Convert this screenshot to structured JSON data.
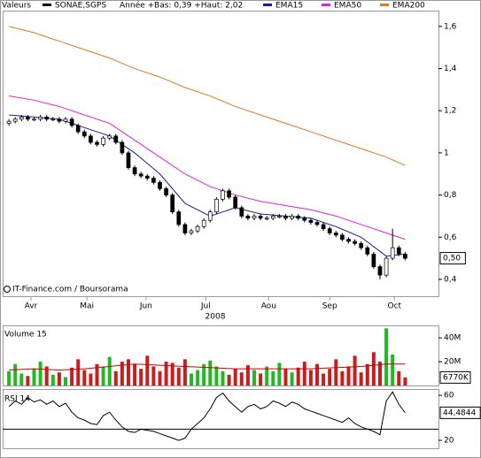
{
  "chart_data": [
    {
      "type": "candlestick",
      "legend_label": "Valeurs",
      "name": "SONAE,SGPS",
      "color": "#000000",
      "range_note": "Année +Bas: 0,39 +Haut: 2,02",
      "up_color": "#ffffff",
      "down_color": "#000000",
      "open": [
        1.14,
        1.15,
        1.16,
        1.17,
        1.16,
        1.16,
        1.17,
        1.16,
        1.16,
        1.15,
        1.16,
        1.13,
        1.1,
        1.08,
        1.05,
        1.04,
        1.07,
        1.08,
        1.05,
        1.0,
        0.93,
        0.9,
        0.89,
        0.88,
        0.86,
        0.83,
        0.8,
        0.72,
        0.66,
        0.62,
        0.63,
        0.65,
        0.68,
        0.72,
        0.78,
        0.82,
        0.79,
        0.74,
        0.7,
        0.69,
        0.7,
        0.69,
        0.69,
        0.7,
        0.7,
        0.69,
        0.7,
        0.69,
        0.68,
        0.67,
        0.66,
        0.64,
        0.62,
        0.61,
        0.59,
        0.58,
        0.57,
        0.55,
        0.52,
        0.46,
        0.42,
        0.5,
        0.55,
        0.52
      ],
      "high": [
        1.16,
        1.17,
        1.18,
        1.18,
        1.17,
        1.18,
        1.18,
        1.17,
        1.17,
        1.17,
        1.17,
        1.14,
        1.11,
        1.09,
        1.06,
        1.08,
        1.09,
        1.09,
        1.06,
        1.01,
        0.94,
        0.91,
        0.9,
        0.89,
        0.87,
        0.84,
        0.81,
        0.73,
        0.67,
        0.64,
        0.66,
        0.69,
        0.73,
        0.79,
        0.83,
        0.83,
        0.8,
        0.75,
        0.71,
        0.71,
        0.71,
        0.7,
        0.71,
        0.71,
        0.71,
        0.71,
        0.71,
        0.7,
        0.69,
        0.68,
        0.67,
        0.65,
        0.63,
        0.62,
        0.6,
        0.59,
        0.58,
        0.56,
        0.53,
        0.47,
        0.51,
        0.64,
        0.56,
        0.53
      ],
      "low": [
        1.13,
        1.14,
        1.15,
        1.15,
        1.15,
        1.15,
        1.15,
        1.15,
        1.14,
        1.14,
        1.12,
        1.09,
        1.07,
        1.04,
        1.03,
        1.03,
        1.06,
        1.04,
        0.99,
        0.92,
        0.89,
        0.88,
        0.87,
        0.85,
        0.82,
        0.79,
        0.71,
        0.65,
        0.61,
        0.61,
        0.62,
        0.64,
        0.67,
        0.71,
        0.77,
        0.78,
        0.73,
        0.69,
        0.68,
        0.68,
        0.68,
        0.68,
        0.68,
        0.69,
        0.68,
        0.68,
        0.68,
        0.67,
        0.66,
        0.65,
        0.63,
        0.61,
        0.6,
        0.58,
        0.57,
        0.56,
        0.54,
        0.51,
        0.45,
        0.4,
        0.41,
        0.49,
        0.51,
        0.49
      ],
      "close": [
        1.15,
        1.16,
        1.17,
        1.16,
        1.16,
        1.17,
        1.16,
        1.16,
        1.15,
        1.16,
        1.13,
        1.1,
        1.08,
        1.05,
        1.04,
        1.07,
        1.08,
        1.05,
        1.0,
        0.93,
        0.9,
        0.89,
        0.88,
        0.86,
        0.83,
        0.8,
        0.72,
        0.66,
        0.62,
        0.63,
        0.65,
        0.68,
        0.72,
        0.78,
        0.82,
        0.79,
        0.74,
        0.7,
        0.69,
        0.7,
        0.69,
        0.69,
        0.7,
        0.7,
        0.69,
        0.7,
        0.69,
        0.68,
        0.67,
        0.66,
        0.64,
        0.62,
        0.61,
        0.59,
        0.58,
        0.57,
        0.55,
        0.52,
        0.46,
        0.42,
        0.5,
        0.55,
        0.52,
        0.5
      ],
      "overlays": [
        {
          "name": "EMA15",
          "color": "#1a1aa0",
          "x": [
            0,
            4,
            8,
            12,
            16,
            20,
            24,
            28,
            32,
            36,
            40,
            44,
            48,
            52,
            56,
            60,
            63
          ],
          "values": [
            1.18,
            1.17,
            1.16,
            1.12,
            1.08,
            1.0,
            0.9,
            0.76,
            0.7,
            0.74,
            0.71,
            0.7,
            0.69,
            0.65,
            0.6,
            0.51,
            0.52
          ]
        },
        {
          "name": "EMA50",
          "color": "#e020e0",
          "x": [
            0,
            4,
            8,
            12,
            16,
            20,
            24,
            28,
            32,
            36,
            40,
            44,
            48,
            52,
            56,
            60,
            63
          ],
          "values": [
            1.27,
            1.25,
            1.22,
            1.18,
            1.14,
            1.06,
            0.98,
            0.9,
            0.84,
            0.8,
            0.77,
            0.75,
            0.73,
            0.7,
            0.66,
            0.62,
            0.59
          ]
        },
        {
          "name": "EMA200",
          "color": "#e07820",
          "x": [
            0,
            4,
            8,
            12,
            16,
            20,
            24,
            28,
            32,
            36,
            40,
            44,
            48,
            52,
            56,
            60,
            63
          ],
          "values": [
            1.6,
            1.57,
            1.53,
            1.49,
            1.45,
            1.4,
            1.36,
            1.31,
            1.27,
            1.22,
            1.18,
            1.14,
            1.1,
            1.06,
            1.02,
            0.98,
            0.94
          ]
        }
      ],
      "xlim": [
        -1,
        68.3
      ],
      "xticks": [
        {
          "value": 3.5,
          "label": "Avr"
        },
        {
          "value": 12.4,
          "label": "Mai"
        },
        {
          "value": 21.8,
          "label": "Jun"
        },
        {
          "value": 31.3,
          "label": "Jul"
        },
        {
          "value": 41.3,
          "label": "Aou"
        },
        {
          "value": 51,
          "label": "Sep"
        },
        {
          "value": 61.3,
          "label": "Oct"
        }
      ],
      "year_label": "2008",
      "ylim": [
        0.32,
        1.675
      ],
      "yticks": [
        {
          "value": 0.4,
          "label": "0,4"
        },
        {
          "value": 0.6,
          "label": "0,6"
        },
        {
          "value": 0.8,
          "label": "0,8"
        },
        {
          "value": 1,
          "label": "1"
        },
        {
          "value": 1.2,
          "label": "1,2"
        },
        {
          "value": 1.4,
          "label": "1,4"
        },
        {
          "value": 1.6,
          "label": "1,6"
        }
      ],
      "last_value": {
        "value": 0.5,
        "label": "0,50"
      },
      "source": "IT-Finance.com / Boursorama"
    },
    {
      "type": "bar",
      "title": "Volume 15",
      "up_color": "#22b822",
      "down_color": "#c81e1e",
      "values": [
        12000000,
        18000000,
        10000000,
        8000000,
        14000000,
        20000000,
        16000000,
        9000000,
        11000000,
        7000000,
        15000000,
        22000000,
        13000000,
        10000000,
        18000000,
        16000000,
        24000000,
        12000000,
        20000000,
        22000000,
        18000000,
        14000000,
        25000000,
        16000000,
        12000000,
        20000000,
        19000000,
        15000000,
        22000000,
        10000000,
        13000000,
        18000000,
        21000000,
        16000000,
        12000000,
        9000000,
        14000000,
        11000000,
        17000000,
        13000000,
        10000000,
        16000000,
        12000000,
        19000000,
        14000000,
        11000000,
        15000000,
        20000000,
        13000000,
        18000000,
        10000000,
        14000000,
        22000000,
        12000000,
        16000000,
        25000000,
        11000000,
        18000000,
        28000000,
        20000000,
        48000000,
        26000000,
        12000000,
        6770000
      ],
      "ma": {
        "color": "#cc0000",
        "x": [
          0,
          4,
          8,
          12,
          16,
          20,
          24,
          28,
          32,
          36,
          40,
          44,
          48,
          52,
          56,
          60,
          63
        ],
        "values": [
          13000000,
          14000000,
          13000000,
          14000000,
          16000000,
          18000000,
          17000000,
          16000000,
          15000000,
          14000000,
          14000000,
          14000000,
          14000000,
          15000000,
          16000000,
          18000000,
          18000000
        ]
      },
      "ylim": [
        0,
        49000000
      ],
      "yticks": [
        {
          "value": 20000000,
          "label": "20M"
        },
        {
          "value": 40000000,
          "label": "40M"
        }
      ],
      "last_value": {
        "value": 6770000,
        "label": "6770K"
      }
    },
    {
      "type": "line",
      "title": "RSI 14",
      "color": "#000000",
      "values": [
        50,
        55,
        52,
        58,
        54,
        56,
        52,
        55,
        50,
        53,
        45,
        40,
        38,
        35,
        34,
        42,
        45,
        38,
        32,
        28,
        27,
        30,
        29,
        28,
        26,
        24,
        22,
        20,
        22,
        30,
        35,
        40,
        48,
        58,
        62,
        55,
        50,
        45,
        50,
        52,
        48,
        50,
        55,
        53,
        50,
        54,
        52,
        48,
        46,
        44,
        42,
        40,
        38,
        36,
        40,
        35,
        32,
        30,
        28,
        25,
        55,
        63,
        52,
        44.4844
      ],
      "ylim": [
        13,
        64
      ],
      "yticks": [
        20,
        60
      ],
      "levels": [
        30
      ],
      "last_value": {
        "value": 44.4844,
        "label": "44,4844"
      }
    }
  ]
}
